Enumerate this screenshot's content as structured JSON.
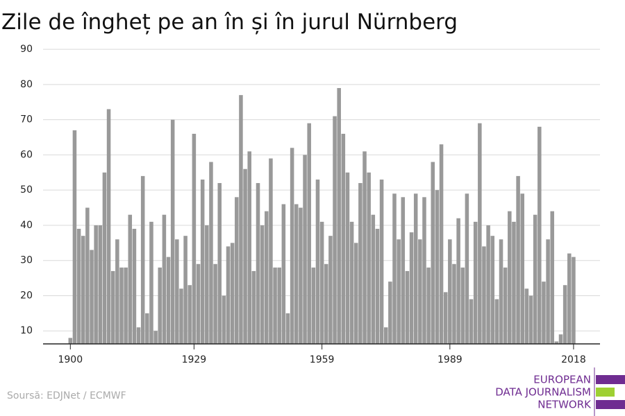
{
  "chart_data": {
    "type": "bar",
    "title": "Zile de îngheț pe an în și în jurul Nürnberg",
    "x": [
      1900,
      1901,
      1902,
      1903,
      1904,
      1905,
      1906,
      1907,
      1908,
      1909,
      1910,
      1911,
      1912,
      1913,
      1914,
      1915,
      1916,
      1917,
      1918,
      1919,
      1920,
      1921,
      1922,
      1923,
      1924,
      1925,
      1926,
      1927,
      1928,
      1929,
      1930,
      1931,
      1932,
      1933,
      1934,
      1935,
      1936,
      1937,
      1938,
      1939,
      1940,
      1941,
      1942,
      1943,
      1944,
      1945,
      1946,
      1947,
      1948,
      1949,
      1950,
      1951,
      1952,
      1953,
      1954,
      1955,
      1956,
      1957,
      1958,
      1959,
      1960,
      1961,
      1962,
      1963,
      1964,
      1965,
      1966,
      1967,
      1968,
      1969,
      1970,
      1971,
      1972,
      1973,
      1974,
      1975,
      1976,
      1977,
      1978,
      1979,
      1980,
      1981,
      1982,
      1983,
      1984,
      1985,
      1986,
      1987,
      1988,
      1989,
      1990,
      1991,
      1992,
      1993,
      1994,
      1995,
      1996,
      1997,
      1998,
      1999,
      2000,
      2001,
      2002,
      2003,
      2004,
      2005,
      2006,
      2007,
      2008,
      2009,
      2010,
      2011,
      2012,
      2013,
      2014,
      2015,
      2016,
      2017,
      2018
    ],
    "values": [
      8,
      67,
      39,
      37,
      45,
      33,
      40,
      40,
      55,
      73,
      27,
      36,
      28,
      28,
      43,
      39,
      11,
      54,
      15,
      41,
      10,
      28,
      43,
      31,
      70,
      36,
      22,
      37,
      23,
      66,
      29,
      53,
      40,
      58,
      29,
      52,
      20,
      34,
      35,
      48,
      77,
      56,
      61,
      27,
      52,
      40,
      44,
      59,
      28,
      28,
      46,
      15,
      62,
      46,
      45,
      60,
      69,
      28,
      53,
      41,
      29,
      37,
      71,
      79,
      66,
      55,
      41,
      35,
      52,
      61,
      55,
      43,
      39,
      53,
      11,
      24,
      49,
      36,
      48,
      27,
      38,
      49,
      36,
      48,
      28,
      58,
      50,
      63,
      21,
      36,
      29,
      42,
      28,
      49,
      19,
      41,
      69,
      34,
      40,
      37,
      19,
      36,
      28,
      44,
      41,
      54,
      49,
      22,
      20,
      43,
      68,
      24,
      36,
      44,
      7,
      9,
      23,
      32,
      31
    ],
    "color": "#999999",
    "xlim": [
      1893.6,
      2024.2
    ],
    "xticks": [
      1900,
      1929,
      1959,
      1989,
      2018
    ],
    "ylim": [
      6.3,
      92
    ],
    "yticks": [
      10,
      20,
      30,
      40,
      50,
      60,
      70,
      80,
      90
    ],
    "grid": true
  },
  "source": "Soursă: EDJNet / ECMWF",
  "logo": [
    "EUROPEAN",
    "DATA JOURNALISM",
    "NETWORK"
  ]
}
